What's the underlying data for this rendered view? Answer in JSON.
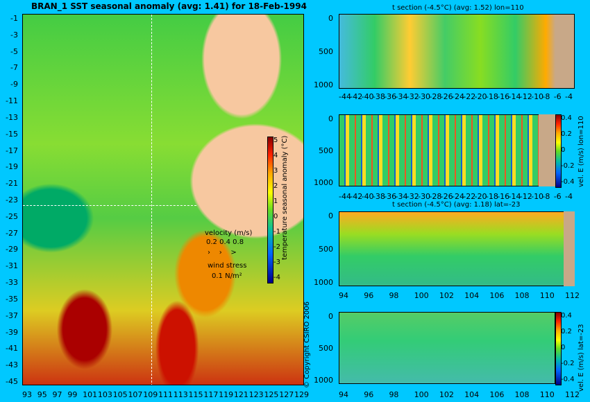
{
  "left_panel": {
    "title": "BRAN_1 SST seasonal anomaly (avg: 1.41) for 18-Feb-1994",
    "lat_ticks": [
      "-1",
      "-3",
      "-5",
      "-7",
      "-9",
      "-11",
      "-13",
      "-15",
      "-17",
      "-19",
      "-21",
      "-23",
      "-25",
      "-27",
      "-29",
      "-31",
      "-33",
      "-35",
      "-37",
      "-39",
      "-41",
      "-43",
      "-45"
    ],
    "lon_ticks": [
      "93",
      "95",
      "97",
      "99",
      "101",
      "103",
      "105",
      "107",
      "109",
      "111",
      "113",
      "115",
      "117",
      "119",
      "121",
      "123",
      "125",
      "127",
      "129"
    ],
    "colorbar": {
      "label": "temperature seasonal anomaly (°C)",
      "ticks": [
        "5",
        "4",
        "3",
        "2",
        "1",
        "0",
        "-1",
        "-2",
        "-3",
        "-4"
      ]
    },
    "velocity_label": "velocity (m/s)",
    "velocity_scale": "0.2 0.4 0.8",
    "wind_label": "wind stress",
    "wind_scale": "0.1 N/m²",
    "copyright": "© Copyright CSIRO 2006"
  },
  "sections": [
    {
      "title": "t section (-4.5°C) (avg: 1.52) lon=110",
      "y_ticks": [
        "0",
        "500",
        "1000"
      ],
      "x_ticks": [
        "-44",
        "-42",
        "-40",
        "-38",
        "-36",
        "-34",
        "-32",
        "-30",
        "-28",
        "-26",
        "-24",
        "-22",
        "-20",
        "-18",
        "-16",
        "-14",
        "-12",
        "-10",
        "-8",
        "-6",
        "-4"
      ]
    },
    {
      "title": "",
      "y_ticks": [
        "0",
        "500",
        "1000"
      ],
      "x_ticks": [
        "-44",
        "-42",
        "-40",
        "-38",
        "-36",
        "-34",
        "-32",
        "-30",
        "-28",
        "-26",
        "-24",
        "-22",
        "-20",
        "-18",
        "-16",
        "-14",
        "-12",
        "-10",
        "-8",
        "-6",
        "-4"
      ],
      "colorbar_label": "vel. E (m/s) lon=110",
      "colorbar_ticks": [
        "0.4",
        "0.2",
        "0",
        "-0.2",
        "-0.4"
      ]
    },
    {
      "title": "t section (-4.5°C) (avg: 1.18) lat=-23",
      "y_ticks": [
        "0",
        "500",
        "1000"
      ],
      "x_ticks": [
        "94",
        "96",
        "98",
        "100",
        "102",
        "104",
        "106",
        "108",
        "110",
        "112"
      ]
    },
    {
      "title": "",
      "y_ticks": [
        "0",
        "500",
        "1000"
      ],
      "x_ticks": [
        "94",
        "96",
        "98",
        "100",
        "102",
        "104",
        "106",
        "108",
        "110",
        "112"
      ],
      "colorbar_label": "vel. E (m/s) lat=-23",
      "colorbar_ticks": [
        "0.4",
        "0.2",
        "0",
        "-0.2",
        "-0.4"
      ]
    }
  ]
}
